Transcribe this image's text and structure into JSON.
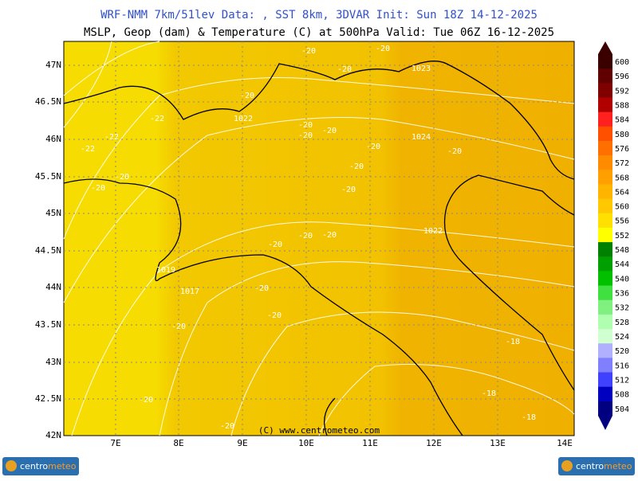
{
  "header": {
    "line1": "WRF-NMM 7km/51lev   Data: , SST 8km, 3DVAR   Init: Sun 18Z 14-12-2025",
    "line2": "MSLP, Geop (dam) & Temperature (C) at 500hPa  Valid: Tue 06Z 16-12-2025"
  },
  "lat_labels": [
    "47N",
    "46.5N",
    "46N",
    "45.5N",
    "45N",
    "44.5N",
    "44N",
    "43.5N",
    "43N",
    "42.5N",
    "42N"
  ],
  "lon_labels": [
    "7E",
    "8E",
    "9E",
    "10E",
    "11E",
    "12E",
    "13E",
    "14E"
  ],
  "colorbar": {
    "labels": [
      "600",
      "596",
      "592",
      "588",
      "584",
      "580",
      "576",
      "572",
      "568",
      "564",
      "560",
      "556",
      "552",
      "548",
      "544",
      "540",
      "536",
      "532",
      "528",
      "524",
      "520",
      "516",
      "512",
      "508",
      "504"
    ]
  },
  "contour_labels": [
    "-20",
    "-20",
    "-20",
    "1023",
    "-20",
    "-22",
    "-22",
    "-22",
    "1022",
    "-20",
    "-20",
    "-20",
    "-20",
    "1024",
    "-20",
    "-20",
    "-20",
    "-20",
    "-20",
    "-20",
    "-20",
    "1022",
    "-20",
    "1019",
    "1017",
    "-20",
    "-20",
    "-20",
    "-18",
    "-18",
    "-20",
    "-18",
    "-20"
  ],
  "copyright": "(C) www.centrometeo.com",
  "logo": {
    "part1": "centro",
    "part2": "meteo"
  }
}
